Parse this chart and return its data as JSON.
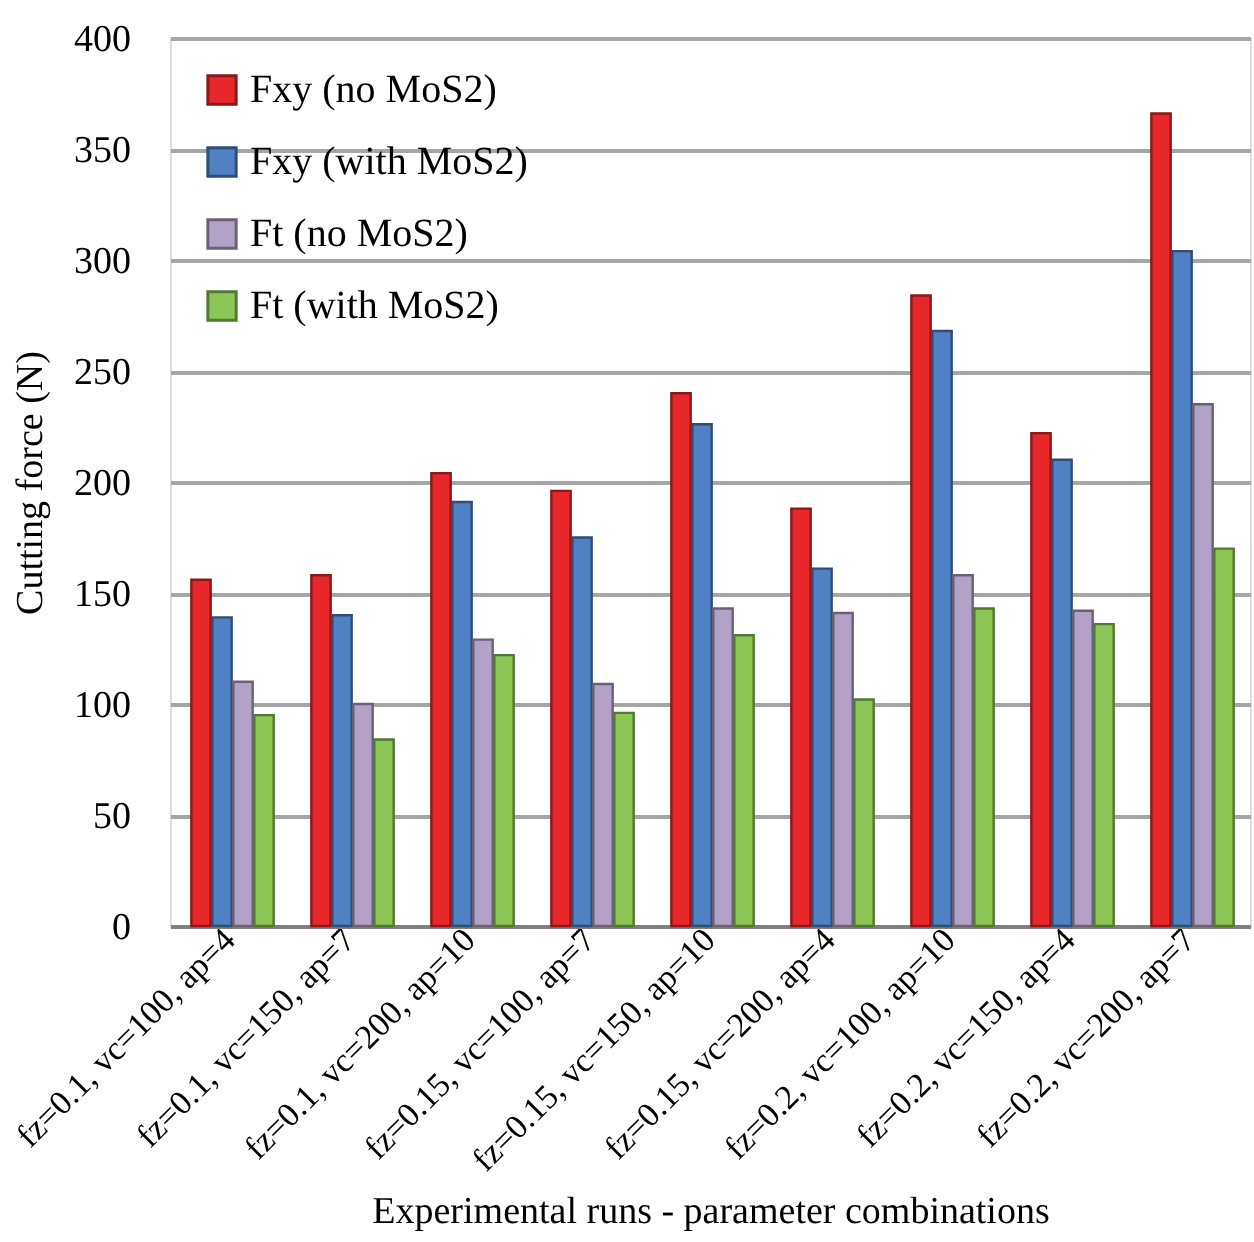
{
  "chart_data": {
    "type": "bar",
    "xlabel": "Experimental runs - parameter combinations",
    "ylabel": "Cutting force (N)",
    "categories": [
      "fz=0.1, vc=100, ap=4",
      "fz=0.1, vc=150, ap=7",
      "fz=0.1, vc=200, ap=10",
      "fz=0.15, vc=100, ap=7",
      "fz=0.15, vc=150, ap=10",
      "fz=0.15, vc=200, ap=4",
      "fz=0.2, vc=100, ap=10",
      "fz=0.2, vc=150, ap=4",
      "fz=0.2, vc=200, ap=7"
    ],
    "series": [
      {
        "name": "Fxy (no MoS2)",
        "color": "#e8272a",
        "values": [
          156,
          158,
          204,
          196,
          240,
          188,
          284,
          222,
          366
        ]
      },
      {
        "name": "Fxy (with MoS2)",
        "color": "#4f81c4",
        "values": [
          139,
          140,
          191,
          175,
          226,
          161,
          268,
          210,
          304
        ]
      },
      {
        "name": "Ft (no MoS2)",
        "color": "#b3a2c7",
        "values": [
          110,
          100,
          129,
          109,
          143,
          141,
          158,
          142,
          235
        ]
      },
      {
        "name": "Ft (with MoS2)",
        "color": "#8cc756",
        "values": [
          95,
          84,
          122,
          96,
          131,
          102,
          143,
          136,
          170
        ]
      }
    ],
    "ylim": [
      0,
      400
    ],
    "yticks": [
      0,
      50,
      100,
      150,
      200,
      250,
      300,
      350,
      400
    ],
    "grid": "y",
    "legend": "top left"
  }
}
